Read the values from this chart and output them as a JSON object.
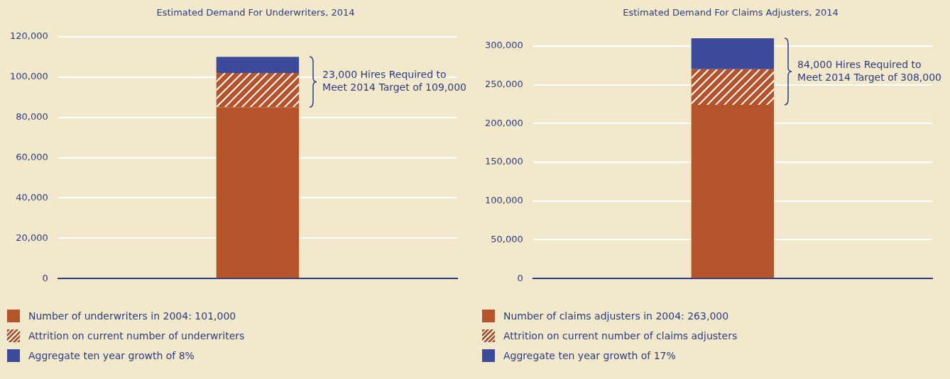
{
  "chart_data": [
    {
      "type": "bar",
      "title": "Estimated Demand For Underwriters, 2014",
      "categories": [
        null
      ],
      "stacked": true,
      "series": [
        {
          "name": "Number of underwriters in 2004: 101,000",
          "color": "#b5532a",
          "values": [
            85000
          ]
        },
        {
          "name": "Attrition on current number of underwriters",
          "color": "#b5532a",
          "values": [
            17000
          ]
        },
        {
          "name": "Aggregate ten year growth of 8%",
          "color": "#3b4a9a",
          "values": [
            8000
          ]
        }
      ],
      "ylim": [
        0,
        120000
      ],
      "yticks": [
        {
          "value": 0,
          "label": "0"
        },
        {
          "value": 20000,
          "label": "20,000"
        },
        {
          "value": 40000,
          "label": "40,000"
        },
        {
          "value": 60000,
          "label": "60,000"
        },
        {
          "value": 80000,
          "label": "80,000"
        },
        {
          "value": 100000,
          "label": "100,000"
        },
        {
          "value": 120000,
          "label": "120,000"
        }
      ],
      "grid": "y",
      "tick_labels": "y",
      "legend": "bottom left",
      "annotations": [
        "23,000 Hires Required to\nMeet 2014 Target of 109,000"
      ]
    },
    {
      "type": "bar",
      "title": "Estimated Demand For Claims Adjusters, 2014",
      "categories": [
        null
      ],
      "stacked": true,
      "series": [
        {
          "name": "Number of claims adjusters in 2004: 263,000",
          "color": "#b5532a",
          "values": [
            224000
          ]
        },
        {
          "name": "Attrition on current number of claims adjusters",
          "color": "#b5532a",
          "values": [
            46000
          ]
        },
        {
          "name": "Aggregate ten year growth of 17%",
          "color": "#3b4a9a",
          "values": [
            40000
          ]
        }
      ],
      "ylim": [
        0,
        312000
      ],
      "yticks": [
        {
          "value": 0,
          "label": "0"
        },
        {
          "value": 50000,
          "label": "50,000"
        },
        {
          "value": 100000,
          "label": "100,000"
        },
        {
          "value": 150000,
          "label": "150,000"
        },
        {
          "value": 200000,
          "label": "200,000"
        },
        {
          "value": 250000,
          "label": "250,000"
        },
        {
          "value": 300000,
          "label": "300,000"
        }
      ],
      "grid": "y",
      "tick_labels": "y",
      "legend": "bottom left",
      "annotations": [
        "84,000 Hires Required to\nMeet 2014 Target of 308,000"
      ]
    }
  ]
}
